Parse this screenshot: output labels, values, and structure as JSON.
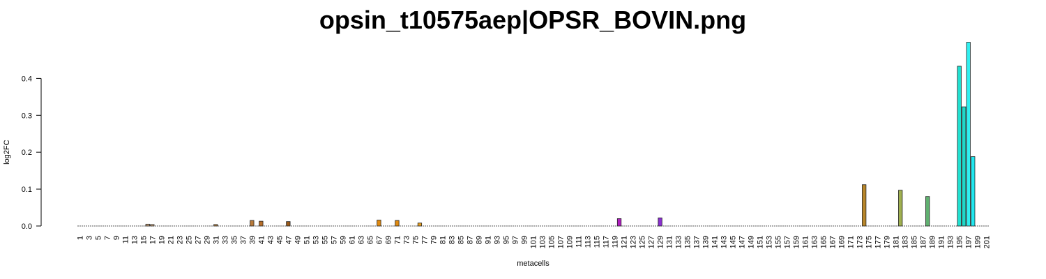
{
  "chart_data": {
    "type": "bar",
    "title": "opsin_t10575aep|OPSR_BOVIN.png",
    "xlabel": "metacells",
    "ylabel": "log2FC",
    "ylim": [
      0,
      0.5
    ],
    "yticks": [
      "0.0",
      "0.1",
      "0.2",
      "0.3",
      "0.4"
    ],
    "x_range": [
      1,
      201
    ],
    "xtick_labels": [
      "1",
      "3",
      "5",
      "7",
      "9",
      "11",
      "13",
      "15",
      "17",
      "19",
      "21",
      "23",
      "25",
      "27",
      "29",
      "31",
      "33",
      "35",
      "37",
      "39",
      "41",
      "43",
      "45",
      "47",
      "49",
      "51",
      "53",
      "55",
      "57",
      "59",
      "61",
      "63",
      "65",
      "67",
      "69",
      "71",
      "73",
      "75",
      "77",
      "79",
      "81",
      "83",
      "85",
      "87",
      "89",
      "91",
      "93",
      "95",
      "97",
      "99",
      "101",
      "103",
      "105",
      "107",
      "109",
      "111",
      "113",
      "115",
      "117",
      "119",
      "121",
      "123",
      "125",
      "127",
      "129",
      "131",
      "133",
      "135",
      "137",
      "139",
      "141",
      "143",
      "145",
      "147",
      "149",
      "151",
      "153",
      "155",
      "157",
      "159",
      "161",
      "163",
      "165",
      "167",
      "169",
      "171",
      "173",
      "175",
      "177",
      "179",
      "181",
      "183",
      "185",
      "187",
      "189",
      "191",
      "193",
      "195",
      "197",
      "199",
      "201"
    ],
    "grid": false,
    "bars": [
      {
        "x": 16,
        "value": 0.005,
        "color": "#c8a27a"
      },
      {
        "x": 17,
        "value": 0.004,
        "color": "#c8a27a"
      },
      {
        "x": 31,
        "value": 0.004,
        "color": "#b08040"
      },
      {
        "x": 39,
        "value": 0.015,
        "color": "#b87a3a"
      },
      {
        "x": 41,
        "value": 0.013,
        "color": "#b86f2a"
      },
      {
        "x": 47,
        "value": 0.012,
        "color": "#9a5a1a"
      },
      {
        "x": 67,
        "value": 0.016,
        "color": "#e08a10"
      },
      {
        "x": 71,
        "value": 0.015,
        "color": "#e08a10"
      },
      {
        "x": 76,
        "value": 0.008,
        "color": "#e8a020"
      },
      {
        "x": 120,
        "value": 0.02,
        "color": "#b020c0"
      },
      {
        "x": 129,
        "value": 0.022,
        "color": "#8a30d0"
      },
      {
        "x": 174,
        "value": 0.112,
        "color": "#b8862a"
      },
      {
        "x": 182,
        "value": 0.097,
        "color": "#a0b050"
      },
      {
        "x": 188,
        "value": 0.08,
        "color": "#60b070"
      },
      {
        "x": 195,
        "value": 0.433,
        "color": "#20e0d0"
      },
      {
        "x": 196,
        "value": 0.323,
        "color": "#20d8c8"
      },
      {
        "x": 197,
        "value": 0.498,
        "color": "#30f0f0"
      },
      {
        "x": 198,
        "value": 0.188,
        "color": "#20e8f0"
      }
    ]
  }
}
